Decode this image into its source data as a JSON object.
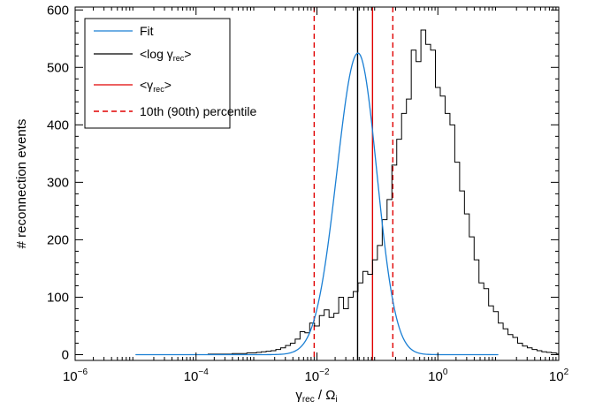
{
  "chart_data": {
    "type": "line",
    "title": "",
    "xlabel": "γrec / Ωi",
    "xlabel_parts": {
      "gamma": "γ",
      "gamma_sub": "rec",
      "slash": " / ",
      "omega": "Ω",
      "omega_sub": "i"
    },
    "ylabel": "# reconnection events",
    "xscale": "log",
    "xlim": [
      1e-06,
      100
    ],
    "ylim": [
      -10,
      605
    ],
    "grid": false,
    "legend_position": "top-left",
    "x_ticks": [
      {
        "value": 1e-06,
        "base": "10",
        "exp": "−6"
      },
      {
        "value": 0.0001,
        "base": "10",
        "exp": "−4"
      },
      {
        "value": 0.01,
        "base": "10",
        "exp": "−2"
      },
      {
        "value": 1,
        "base": "10",
        "exp": "0"
      },
      {
        "value": 100,
        "base": "10",
        "exp": "2"
      }
    ],
    "y_ticks": [
      0,
      100,
      200,
      300,
      400,
      500,
      600
    ],
    "legend": {
      "fit": "Fit",
      "mean_log": {
        "open": "<log γ",
        "sub": "rec",
        "close": ">"
      },
      "mean": {
        "open": "<γ",
        "sub": "rec",
        "close": ">"
      },
      "percentile": "10th (90th) percentile"
    },
    "colors": {
      "fit": "#1a7fd4",
      "histogram": "#000000",
      "mean_log": "#000000",
      "mean": "#e00000",
      "percentile": "#e00000"
    },
    "histogram": {
      "name": "<log γrec>",
      "log_x_start": -5.0,
      "bin_width_dex": 0.08,
      "counts": [
        0,
        0,
        0,
        0,
        0,
        0,
        0,
        0,
        0,
        0,
        0,
        0,
        0,
        0,
        0,
        1,
        1,
        1,
        1,
        1,
        2,
        2,
        2,
        3,
        3,
        4,
        5,
        6,
        7,
        9,
        12,
        16,
        20,
        27,
        40,
        38,
        55,
        50,
        68,
        78,
        65,
        72,
        100,
        80,
        100,
        110,
        125,
        145,
        140,
        165,
        190,
        235,
        270,
        330,
        375,
        420,
        445,
        530,
        510,
        565,
        540,
        530,
        465,
        450,
        420,
        400,
        335,
        285,
        245,
        205,
        165,
        125,
        115,
        85,
        75,
        55,
        45,
        35,
        30,
        20,
        15,
        12,
        9,
        7,
        5,
        4,
        3,
        2,
        2,
        1,
        1,
        1,
        0,
        0,
        0
      ]
    },
    "fit": {
      "name": "Fit",
      "model": "log-normal",
      "peak": 525,
      "center_log10": -1.32,
      "sigma_dex_left": 0.35,
      "sigma_dex_right": 0.31
    },
    "vlines": {
      "mean_log": 0.047,
      "mean": 0.083,
      "p10": 0.009,
      "p90": 0.18
    }
  }
}
